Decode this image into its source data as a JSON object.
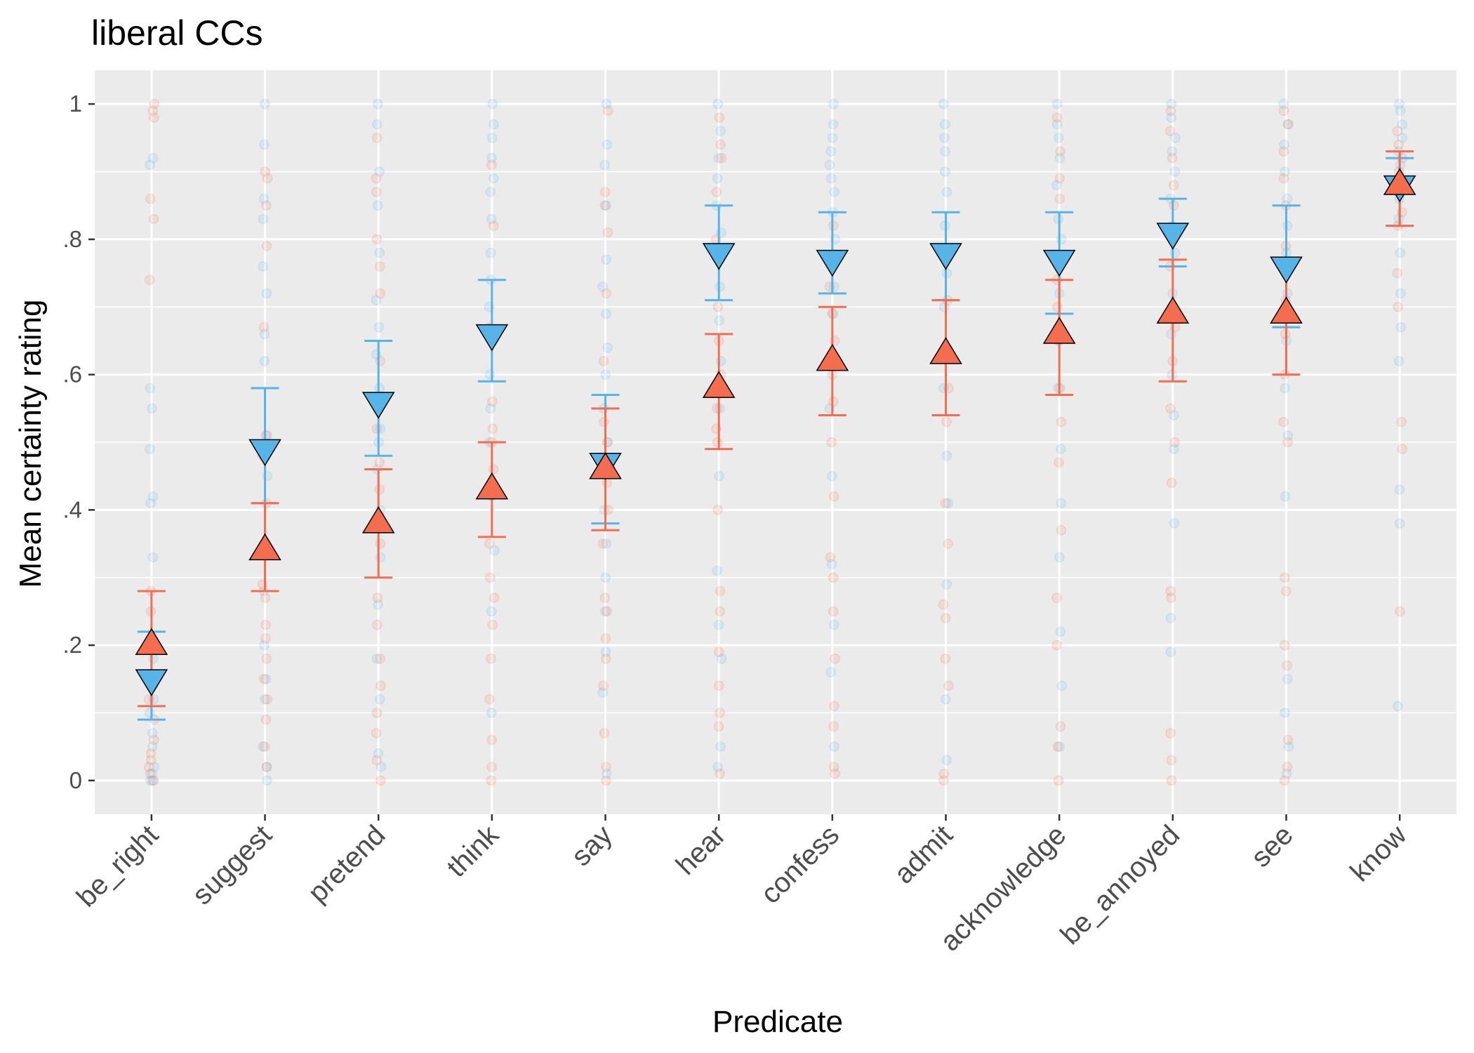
{
  "chart_data": {
    "type": "scatter",
    "title": "liberal CCs",
    "xlabel": "Predicate",
    "ylabel": "Mean certainty rating",
    "ylim": [
      -0.05,
      1.05
    ],
    "yticks": [
      0,
      0.2,
      0.4,
      0.6,
      0.8,
      1
    ],
    "ytick_labels": [
      "0",
      ".2",
      ".4",
      ".6",
      ".8",
      "1"
    ],
    "categories": [
      "be_right",
      "suggest",
      "pretend",
      "think",
      "say",
      "hear",
      "confess",
      "admit",
      "acknowledge",
      "be_annoyed",
      "see",
      "know"
    ],
    "grid": true,
    "colors": {
      "panel": "#ebebeb",
      "grid": "#ffffff",
      "blue": "#56b4e9",
      "red": "#f46d4f",
      "outline": "#000000"
    },
    "series": [
      {
        "name": "blue (down triangle)",
        "marker": "triangle-down",
        "color": "#56b4e9",
        "means": [
          0.15,
          0.49,
          0.56,
          0.66,
          0.47,
          0.78,
          0.77,
          0.78,
          0.77,
          0.81,
          0.76,
          0.88
        ],
        "ci_low": [
          0.09,
          0.41,
          0.48,
          0.59,
          0.38,
          0.71,
          0.72,
          0.71,
          0.69,
          0.76,
          0.67,
          0.82
        ],
        "ci_high": [
          0.22,
          0.58,
          0.65,
          0.74,
          0.57,
          0.85,
          0.84,
          0.84,
          0.84,
          0.86,
          0.85,
          0.92
        ],
        "points": [
          [
            0,
            0,
            0.01,
            0.02,
            0.05,
            0.07,
            0.1,
            0.12,
            0.14,
            0.18,
            0.33,
            0.41,
            0.42,
            0.49,
            0.55,
            0.58,
            0.91,
            0.92
          ],
          [
            0,
            0.02,
            0.05,
            0.12,
            0.15,
            0.2,
            0.28,
            0.35,
            0.45,
            0.51,
            0.62,
            0.66,
            0.72,
            0.76,
            0.83,
            0.86,
            0.94,
            1
          ],
          [
            0.02,
            0.04,
            0.12,
            0.18,
            0.26,
            0.33,
            0.4,
            0.46,
            0.5,
            0.52,
            0.58,
            0.63,
            0.67,
            0.71,
            0.78,
            0.85,
            0.9,
            0.97,
            1
          ],
          [
            0.1,
            0.25,
            0.34,
            0.42,
            0.5,
            0.55,
            0.6,
            0.66,
            0.7,
            0.74,
            0.78,
            0.83,
            0.87,
            0.89,
            0.92,
            0.95,
            0.97,
            1
          ],
          [
            0.01,
            0.13,
            0.19,
            0.25,
            0.3,
            0.35,
            0.4,
            0.46,
            0.5,
            0.55,
            0.6,
            0.64,
            0.69,
            0.73,
            0.77,
            0.85,
            0.91,
            0.94,
            1
          ],
          [
            0.02,
            0.05,
            0.18,
            0.23,
            0.31,
            0.45,
            0.55,
            0.62,
            0.68,
            0.73,
            0.78,
            0.81,
            0.85,
            0.89,
            0.92,
            0.96,
            1
          ],
          [
            0.05,
            0.16,
            0.23,
            0.32,
            0.45,
            0.55,
            0.63,
            0.69,
            0.73,
            0.77,
            0.8,
            0.84,
            0.87,
            0.89,
            0.91,
            0.93,
            0.95,
            0.97,
            1
          ],
          [
            0.03,
            0.12,
            0.29,
            0.41,
            0.48,
            0.58,
            0.64,
            0.7,
            0.75,
            0.78,
            0.82,
            0.87,
            0.9,
            0.93,
            0.95,
            0.97,
            1
          ],
          [
            0.05,
            0.14,
            0.22,
            0.33,
            0.41,
            0.49,
            0.58,
            0.65,
            0.72,
            0.77,
            0.8,
            0.83,
            0.88,
            0.92,
            0.95,
            0.97,
            1
          ],
          [
            0.19,
            0.24,
            0.38,
            0.49,
            0.54,
            0.6,
            0.66,
            0.72,
            0.78,
            0.82,
            0.86,
            0.9,
            0.93,
            0.95,
            0.98,
            1
          ],
          [
            0.01,
            0.05,
            0.1,
            0.15,
            0.42,
            0.51,
            0.58,
            0.65,
            0.72,
            0.78,
            0.82,
            0.86,
            0.9,
            0.94,
            0.97,
            1
          ],
          [
            0.11,
            0.38,
            0.43,
            0.62,
            0.67,
            0.72,
            0.78,
            0.83,
            0.86,
            0.89,
            0.91,
            0.93,
            0.95,
            0.97,
            0.99,
            1
          ]
        ]
      },
      {
        "name": "red (up triangle)",
        "marker": "triangle-up",
        "color": "#f46d4f",
        "means": [
          0.2,
          0.34,
          0.38,
          0.43,
          0.46,
          0.58,
          0.62,
          0.63,
          0.66,
          0.69,
          0.69,
          0.88
        ],
        "ci_low": [
          0.11,
          0.28,
          0.3,
          0.36,
          0.37,
          0.49,
          0.54,
          0.54,
          0.57,
          0.59,
          0.6,
          0.82
        ],
        "ci_high": [
          0.28,
          0.41,
          0.46,
          0.5,
          0.55,
          0.66,
          0.7,
          0.71,
          0.74,
          0.77,
          0.77,
          0.93
        ],
        "points": [
          [
            0,
            0.01,
            0.02,
            0.03,
            0.04,
            0.06,
            0.09,
            0.12,
            0.25,
            0.28,
            0.74,
            0.83,
            0.86,
            0.98,
            0.99,
            1
          ],
          [
            0.02,
            0.05,
            0.09,
            0.12,
            0.15,
            0.18,
            0.21,
            0.23,
            0.27,
            0.29,
            0.34,
            0.41,
            0.48,
            0.51,
            0.67,
            0.79,
            0.85,
            0.89,
            0.9
          ],
          [
            0,
            0.03,
            0.07,
            0.1,
            0.14,
            0.18,
            0.23,
            0.27,
            0.35,
            0.39,
            0.43,
            0.47,
            0.52,
            0.62,
            0.72,
            0.76,
            0.8,
            0.87,
            0.89,
            0.95
          ],
          [
            0,
            0.02,
            0.06,
            0.12,
            0.18,
            0.23,
            0.27,
            0.3,
            0.35,
            0.43,
            0.46,
            0.5,
            0.52,
            0.56,
            0.67,
            0.82,
            0.91
          ],
          [
            0,
            0.02,
            0.07,
            0.14,
            0.18,
            0.21,
            0.25,
            0.27,
            0.35,
            0.4,
            0.44,
            0.5,
            0.53,
            0.62,
            0.72,
            0.81,
            0.85,
            0.87,
            0.99
          ],
          [
            0.01,
            0.08,
            0.1,
            0.14,
            0.19,
            0.25,
            0.28,
            0.4,
            0.5,
            0.52,
            0.55,
            0.6,
            0.65,
            0.7,
            0.8,
            0.87,
            0.92,
            0.94,
            0.98
          ],
          [
            0.01,
            0.02,
            0.08,
            0.11,
            0.18,
            0.25,
            0.3,
            0.33,
            0.42,
            0.5,
            0.56,
            0.6,
            0.65,
            0.69,
            0.73,
            0.82
          ],
          [
            0,
            0.01,
            0.14,
            0.18,
            0.24,
            0.26,
            0.35,
            0.41,
            0.53,
            0.58,
            0.63,
            0.71
          ],
          [
            0,
            0.05,
            0.08,
            0.2,
            0.27,
            0.37,
            0.47,
            0.53,
            0.58,
            0.65,
            0.7,
            0.74,
            0.86,
            0.89,
            0.93,
            0.98
          ],
          [
            0,
            0.03,
            0.07,
            0.27,
            0.28,
            0.44,
            0.5,
            0.55,
            0.62,
            0.67,
            0.76,
            0.85,
            0.88,
            0.92,
            0.96,
            0.99
          ],
          [
            0,
            0.02,
            0.06,
            0.17,
            0.2,
            0.28,
            0.3,
            0.5,
            0.53,
            0.6,
            0.66,
            0.71,
            0.79,
            0.85,
            0.89,
            0.93,
            0.97,
            0.99
          ],
          [
            0.25,
            0.49,
            0.53,
            0.7,
            0.75,
            0.82,
            0.84,
            0.87,
            0.9,
            0.92,
            0.94,
            0.96
          ]
        ]
      }
    ]
  }
}
